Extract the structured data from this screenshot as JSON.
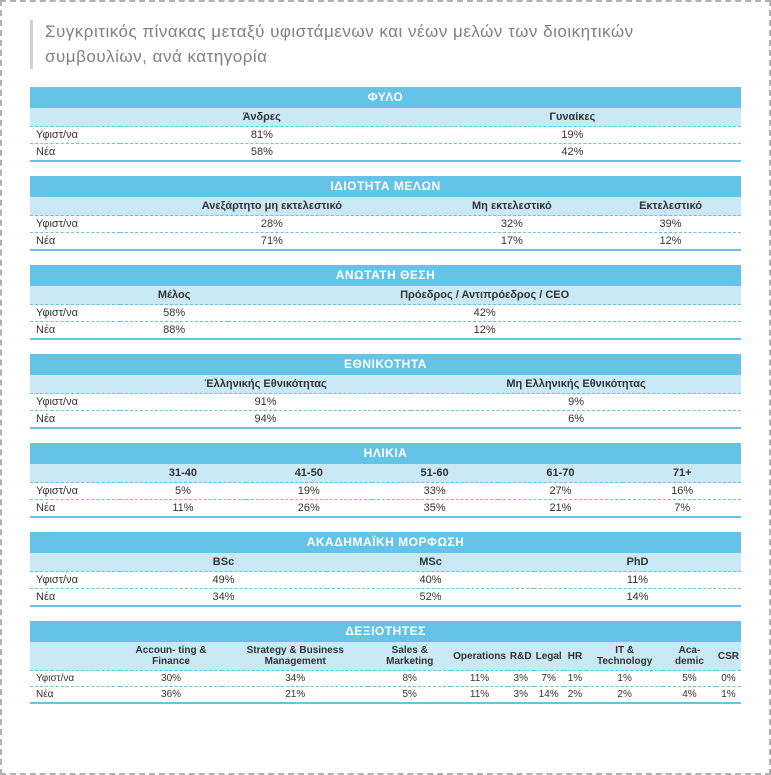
{
  "colors": {
    "header_bg": "#66c3e8",
    "subheader_bg": "#c8e9f5",
    "header_text": "#ffffff",
    "body_text": "#333333",
    "title_text": "#808080",
    "dash_border": "#66c3e8",
    "frame_border": "#b0b0b0",
    "title_rule": "#d0d0d0"
  },
  "title": "Συγκριτικός πίνακας μεταξύ υφιστάμενων και νέων μελών των διοικητικών συμβουλίων, ανά κατηγορία",
  "row_labels": {
    "existing": "Υφιστ/να",
    "new": "Νέα"
  },
  "tables": {
    "gender": {
      "title": "ΦΥΛΟ",
      "cols": [
        "Άνδρες",
        "Γυναίκες"
      ],
      "existing": [
        "81%",
        "19%"
      ],
      "new": [
        "58%",
        "42%"
      ]
    },
    "member_type": {
      "title": "ΙΔΙΟΤΗΤΑ ΜΕΛΩΝ",
      "cols": [
        "Ανεξάρτητο μη εκτελεστικό",
        "Μη εκτελεστικό",
        "Εκτελεστικό"
      ],
      "existing": [
        "28%",
        "32%",
        "39%"
      ],
      "new": [
        "71%",
        "17%",
        "12%"
      ]
    },
    "top_position": {
      "title": "ΑΝΩΤΑΤΗ ΘΕΣΗ",
      "cols": [
        "Μέλος",
        "Πρόεδρος / Αντιπρόεδρος / CEO"
      ],
      "existing": [
        "58%",
        "42%"
      ],
      "new": [
        "88%",
        "12%"
      ]
    },
    "nationality": {
      "title": "ΕΘΝΙΚΟΤΗΤΑ",
      "cols": [
        "Έλληνικής Εθνικότητας",
        "Μη Ελληνικής Εθνικότητας"
      ],
      "existing": [
        "91%",
        "9%"
      ],
      "new": [
        "94%",
        "6%"
      ]
    },
    "age": {
      "title": "ΗΛΙΚΙΑ",
      "cols": [
        "31-40",
        "41-50",
        "51-60",
        "61-70",
        "71+"
      ],
      "existing": [
        "5%",
        "19%",
        "33%",
        "27%",
        "16%"
      ],
      "new": [
        "11%",
        "26%",
        "35%",
        "21%",
        "7%"
      ]
    },
    "education": {
      "title": "ΑΚΑΔΗΜΑΪΚΗ ΜΟΡΦΩΣΗ",
      "cols": [
        "BSc",
        "MSc",
        "PhD"
      ],
      "existing": [
        "49%",
        "40%",
        "11%"
      ],
      "new": [
        "34%",
        "52%",
        "14%"
      ]
    },
    "skills": {
      "title": "ΔΕΞΙΟΤΗΤΕΣ",
      "cols": [
        "Accoun-\nting & Finance",
        "Strategy & Business Management",
        "Sales & Marketing",
        "Operations",
        "R&D",
        "Legal",
        "HR",
        "IT & Technology",
        "Aca-\ndemic",
        "CSR"
      ],
      "existing": [
        "30%",
        "34%",
        "8%",
        "11%",
        "3%",
        "7%",
        "1%",
        "1%",
        "5%",
        "0%"
      ],
      "new": [
        "36%",
        "21%",
        "5%",
        "11%",
        "3%",
        "14%",
        "2%",
        "2%",
        "4%",
        "1%"
      ]
    }
  }
}
